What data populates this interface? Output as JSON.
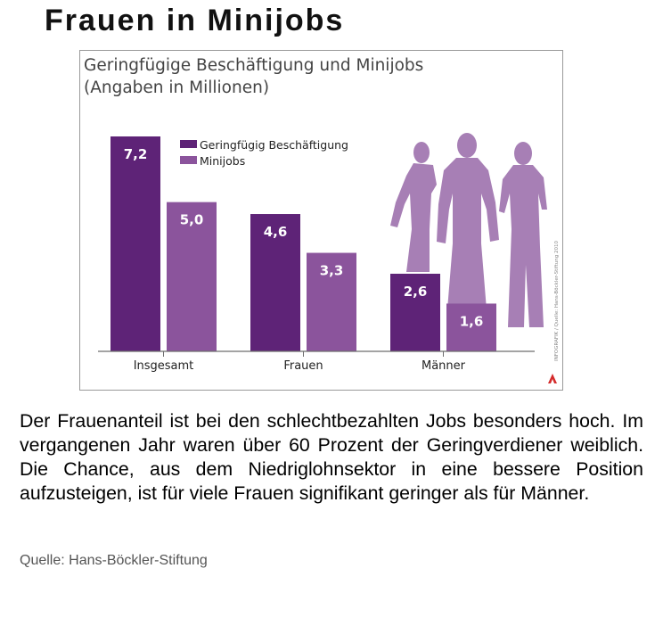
{
  "page": {
    "title": "Frauen in Minijobs",
    "description": "Der Frauenanteil ist bei den schlechtbezahlten Jobs besonders hoch. Im vergangenen Jahr waren über 60 Prozent der Geringverdiener weiblich. Die Chance, aus dem Niedriglohnsektor in eine bessere Position aufzusteigen, ist für viele Frauen signifikant geringer als für Männer.",
    "source": "Quelle: Hans-Böckler-Stiftung"
  },
  "chart_data": {
    "type": "bar",
    "title": "Geringfügige Beschäftigung und Minijobs",
    "subtitle": "(Angaben in Millionen)",
    "categories": [
      "Insgesamt",
      "Frauen",
      "Männer"
    ],
    "series": [
      {
        "name": "Geringfügig Beschäftigung",
        "values": [
          7.2,
          4.6,
          2.6
        ],
        "labels": [
          "7,2",
          "4,6",
          "2,6"
        ],
        "color": "#5e2377"
      },
      {
        "name": "Minijobs",
        "values": [
          5.0,
          3.3,
          1.6
        ],
        "labels": [
          "5,0",
          "3,3",
          "1,6"
        ],
        "color": "#8b549c"
      }
    ],
    "ylim": [
      0,
      8
    ],
    "grid": false,
    "legend_position": "top-center",
    "credit": "INFOGRAFIK / Quelle: Hans-Böckler-Stiftung 2010",
    "silhouette_color": "#a77fb5",
    "credit_icon": "red-logo-icon"
  }
}
